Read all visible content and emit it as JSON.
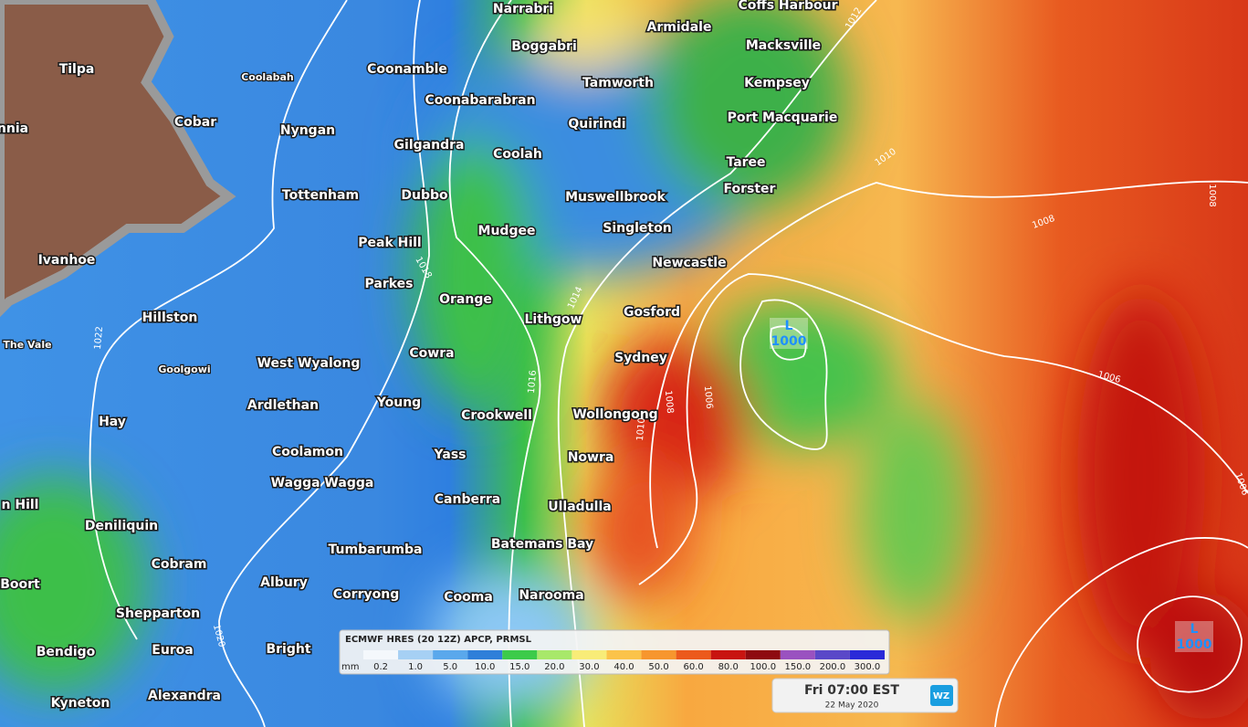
{
  "towns": [
    "Narrabri",
    "Coffs Harbour",
    "Armidale",
    "Boggabri",
    "Macksville",
    "Tilpa",
    "Coolabah",
    "Coonamble",
    "Tamworth",
    "Kempsey",
    "Coonabarabran",
    "Cobar",
    "Quirindi",
    "Port Macquarie",
    "nnia",
    "Nyngan",
    "Gilgandra",
    "Coolah",
    "Taree",
    "Forster",
    "Tottenham",
    "Dubbo",
    "Muswellbrook",
    "Singleton",
    "Mudgee",
    "Peak Hill",
    "Newcastle",
    "Ivanhoe",
    "Parkes",
    "Orange",
    "Lithgow",
    "Gosford",
    "Hillston",
    "The Vale",
    "Cowra",
    "Sydney",
    "West Wyalong",
    "Goolgowi",
    "Ardlethan",
    "Young",
    "Wollongong",
    "Crookwell",
    "Hay",
    "Coolamon",
    "Yass",
    "Nowra",
    "Wagga Wagga",
    "Canberra",
    "Ulladulla",
    "n Hill",
    "Deniliquin",
    "Batemans Bay",
    "Tumbarumba",
    "Cobram",
    "Albury",
    "Boort",
    "Corryong",
    "Cooma",
    "Narooma",
    "Shepparton",
    "Bendigo",
    "Euroa",
    "Bright",
    "Alexandra",
    "Kyneton"
  ],
  "isobar_labels": [
    "1012",
    "1010",
    "1008",
    "1008",
    "1006",
    "1018",
    "1014",
    "1016",
    "1022",
    "1020",
    "1010",
    "1008",
    "1006",
    "1006"
  ],
  "lows": [
    {
      "letter": "L",
      "pressure": "1000"
    },
    {
      "letter": "L",
      "pressure": "1000"
    }
  ],
  "legend": {
    "title": "ECMWF HRES (20 12Z) APCP, PRMSL",
    "unit": "mm",
    "items": [
      {
        "label": "0.2",
        "color": "#f4f8fc"
      },
      {
        "label": "1.0",
        "color": "#a6d0f4"
      },
      {
        "label": "5.0",
        "color": "#5aa8ec"
      },
      {
        "label": "10.0",
        "color": "#2f7fd9"
      },
      {
        "label": "15.0",
        "color": "#3ccb4a"
      },
      {
        "label": "20.0",
        "color": "#a8e86a"
      },
      {
        "label": "30.0",
        "color": "#f8ec78"
      },
      {
        "label": "40.0",
        "color": "#fbc34a"
      },
      {
        "label": "50.0",
        "color": "#f7962e"
      },
      {
        "label": "60.0",
        "color": "#ec5a1c"
      },
      {
        "label": "80.0",
        "color": "#c81410"
      },
      {
        "label": "100.0",
        "color": "#8e0a10"
      },
      {
        "label": "150.0",
        "color": "#9a52c0"
      },
      {
        "label": "200.0",
        "color": "#5a48c8"
      },
      {
        "label": "300.0",
        "color": "#2a2ad8"
      }
    ]
  },
  "time": {
    "main": "Fri 07:00 EST",
    "date": "22 May 2020",
    "logo": "WZ"
  }
}
